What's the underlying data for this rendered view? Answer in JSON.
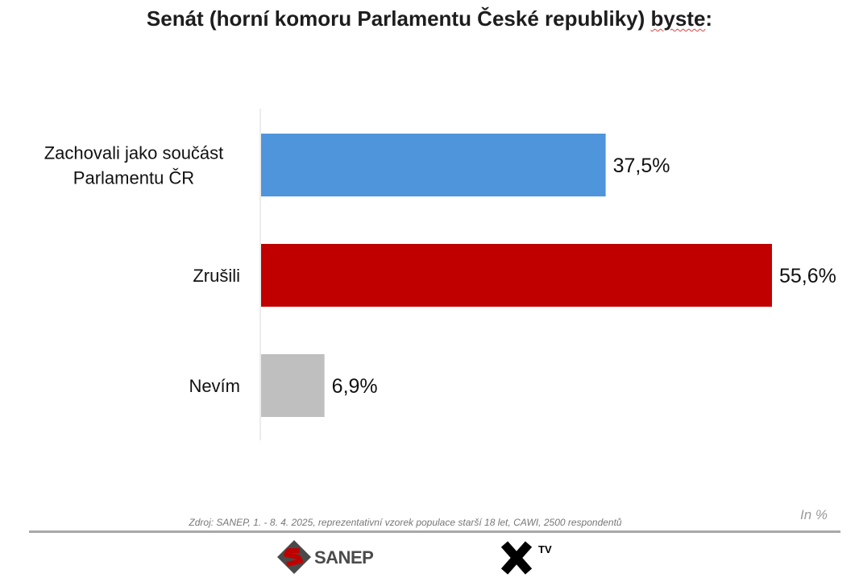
{
  "title_main": "Senát (horní komoru Parlamentu České republiky) ",
  "title_squiggle": "byste",
  "title_end": ":",
  "chart_data": {
    "type": "bar",
    "orientation": "horizontal",
    "categories": [
      [
        "Zachovali jako součást",
        "Parlamentu ČR"
      ],
      [
        "Zrušili"
      ],
      [
        "Nevím"
      ]
    ],
    "values": [
      37.5,
      55.6,
      6.9
    ],
    "value_labels": [
      "37,5%",
      "55,6%",
      "6,9%"
    ],
    "colors": [
      "#4f95db",
      "#c00000",
      "#bfbfbf"
    ],
    "xlim": [
      0,
      60
    ],
    "grid": false,
    "legend": "none",
    "unit": "In %"
  },
  "source": "Zdroj: SANEP, 1. - 8. 4. 2025, reprezentativní vzorek populace starší 18 let, CAWI, 2500 respondentů",
  "logos": {
    "sanep": "SANEP",
    "xtv_sup": "TV"
  }
}
